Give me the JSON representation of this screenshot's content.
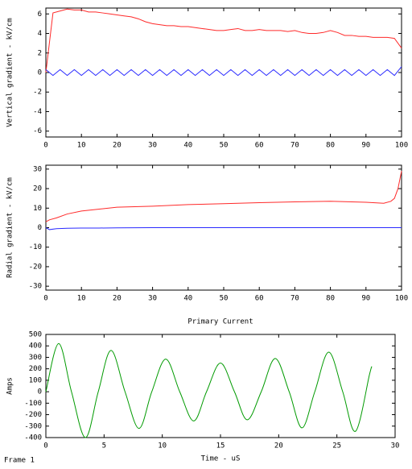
{
  "chart_data": [
    {
      "type": "line",
      "ylabel": "Vertical gradient - kV/cm",
      "x": [
        0,
        2,
        4,
        6,
        8,
        10,
        12,
        14,
        16,
        18,
        20,
        22,
        24,
        26,
        28,
        30,
        32,
        34,
        36,
        38,
        40,
        42,
        44,
        46,
        48,
        50,
        52,
        54,
        56,
        58,
        60,
        62,
        64,
        66,
        68,
        70,
        72,
        74,
        76,
        78,
        80,
        82,
        84,
        86,
        88,
        90,
        92,
        94,
        96,
        98,
        100
      ],
      "series": [
        {
          "color": "#ff2a2a",
          "values": [
            0,
            6.1,
            6.3,
            6.5,
            6.4,
            6.4,
            6.2,
            6.2,
            6.1,
            6.0,
            5.9,
            5.8,
            5.7,
            5.5,
            5.2,
            5.0,
            4.9,
            4.8,
            4.8,
            4.7,
            4.7,
            4.6,
            4.5,
            4.4,
            4.3,
            4.3,
            4.4,
            4.5,
            4.3,
            4.3,
            4.4,
            4.3,
            4.3,
            4.3,
            4.2,
            4.3,
            4.1,
            4.0,
            4.0,
            4.1,
            4.3,
            4.1,
            3.8,
            3.8,
            3.7,
            3.7,
            3.6,
            3.6,
            3.6,
            3.5,
            2.5
          ]
        },
        {
          "color": "#2a2aff",
          "values": [
            0.3,
            -0.3,
            0.3,
            -0.3,
            0.3,
            -0.3,
            0.3,
            -0.3,
            0.3,
            -0.3,
            0.3,
            -0.3,
            0.3,
            -0.3,
            0.3,
            -0.3,
            0.3,
            -0.3,
            0.3,
            -0.3,
            0.3,
            -0.3,
            0.3,
            -0.3,
            0.3,
            -0.3,
            0.3,
            -0.3,
            0.3,
            -0.3,
            0.3,
            -0.3,
            0.3,
            -0.3,
            0.3,
            -0.3,
            0.3,
            -0.3,
            0.3,
            -0.3,
            0.3,
            -0.3,
            0.3,
            -0.3,
            0.3,
            -0.3,
            0.3,
            -0.3,
            0.3,
            -0.3,
            0.6
          ]
        }
      ],
      "xlim": [
        0,
        100
      ],
      "xticks": [
        0,
        10,
        20,
        30,
        40,
        50,
        60,
        70,
        80,
        90,
        100
      ],
      "ylim": [
        -6.6,
        6.6
      ],
      "yticks": [
        -6,
        -4,
        -2,
        0,
        2,
        4,
        6
      ]
    },
    {
      "type": "line",
      "ylabel": "Radial gradient - kV/cm",
      "x": [
        0,
        1,
        3,
        6,
        10,
        15,
        20,
        30,
        40,
        50,
        60,
        70,
        80,
        90,
        95,
        97,
        98,
        99,
        100
      ],
      "series": [
        {
          "color": "#ff2a2a",
          "values": [
            3,
            4,
            5,
            7,
            8.5,
            9.5,
            10.5,
            11,
            11.8,
            12.3,
            12.8,
            13.2,
            13.5,
            13,
            12.5,
            13.5,
            15,
            20,
            29
          ]
        },
        {
          "color": "#2a2aff",
          "values": [
            0,
            -1,
            -0.5,
            -0.3,
            -0.2,
            -0.2,
            -0.1,
            0,
            0,
            0,
            0,
            0,
            0,
            0,
            0,
            0,
            0,
            0,
            0
          ]
        }
      ],
      "xlim": [
        0,
        100
      ],
      "xticks": [
        0,
        10,
        20,
        30,
        40,
        50,
        60,
        70,
        80,
        90,
        100
      ],
      "ylim": [
        -32,
        32
      ],
      "yticks": [
        -30,
        -20,
        -10,
        0,
        10,
        20,
        30
      ]
    },
    {
      "type": "line",
      "title": "Primary Current",
      "xlabel": "Time - uS",
      "ylabel": "Amps",
      "smooth": true,
      "x": [
        0,
        1.1,
        2.2,
        3.4,
        4.5,
        5.6,
        6.8,
        8,
        9.1,
        10.3,
        11.5,
        12.7,
        13.8,
        15,
        16.2,
        17.3,
        18.5,
        19.7,
        20.9,
        22,
        23.1,
        24.3,
        25.5,
        26.6,
        27.8,
        28
      ],
      "series": [
        {
          "color": "#009a00",
          "values": [
            0,
            420,
            0,
            -400,
            0,
            360,
            0,
            -320,
            0,
            285,
            0,
            -255,
            0,
            250,
            0,
            -245,
            0,
            290,
            0,
            -315,
            0,
            345,
            0,
            -345,
            150,
            220
          ]
        }
      ],
      "xlim": [
        0,
        30
      ],
      "xticks": [
        0,
        5,
        10,
        15,
        20,
        25,
        30
      ],
      "ylim": [
        -400,
        500
      ],
      "yticks": [
        -400,
        -300,
        -200,
        -100,
        0,
        100,
        200,
        300,
        400,
        500
      ]
    }
  ],
  "footer": {
    "text": "Frame 1"
  }
}
